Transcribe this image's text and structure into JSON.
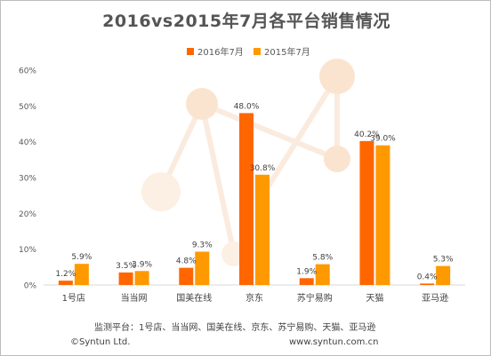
{
  "title": "2016vs2015年7月各平台销售情况",
  "chart_data": {
    "type": "bar",
    "title": "2016vs2015年7月各平台销售情况",
    "categories": [
      "1号店",
      "当当网",
      "国美在线",
      "京东",
      "苏宁易购",
      "天猫",
      "亚马逊"
    ],
    "series": [
      {
        "name": "2016年7月",
        "values": [
          1.2,
          3.5,
          4.8,
          48.0,
          1.9,
          40.2,
          0.4
        ],
        "color": "#ff6600"
      },
      {
        "name": "2015年7月",
        "values": [
          5.9,
          3.9,
          9.3,
          30.8,
          5.8,
          39.0,
          5.3
        ],
        "color": "#ff9900"
      }
    ],
    "data_labels": [
      [
        "1.2%",
        "3.5%",
        "4.8%",
        "48.0%",
        "1.9%",
        "40.2%",
        "0.4%"
      ],
      [
        "5.9%",
        "3.9%",
        "9.3%",
        "30.8%",
        "5.8%",
        "39.0%",
        "5.3%"
      ]
    ],
    "yticks": [
      "0%",
      "10%",
      "20%",
      "30%",
      "40%",
      "50%",
      "60%"
    ],
    "ylim": [
      0,
      60
    ],
    "xlabel": "",
    "ylabel": "",
    "legend_position": "top-center",
    "grid": false
  },
  "footer": {
    "source": "监测平台：1号店、当当网、国美在线、京东、苏宁易购、天猫、亚马逊",
    "copyright": "©Syntun Ltd.",
    "website": "www.syntun.com.cn"
  }
}
